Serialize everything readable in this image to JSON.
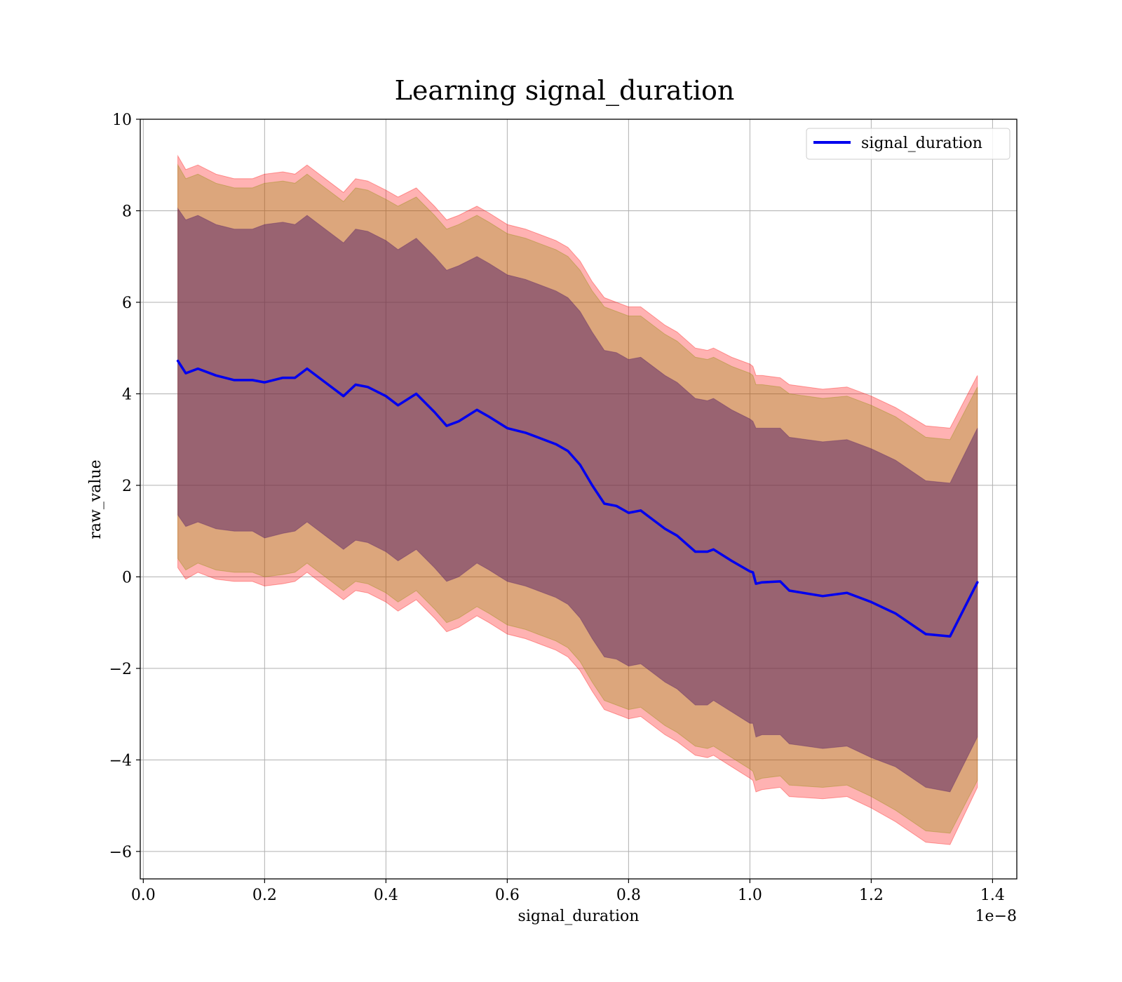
{
  "chart_data": {
    "type": "line",
    "title": "Learning signal_duration",
    "xlabel": "signal_duration",
    "ylabel": "raw_value",
    "x_offset_label": "1e−8",
    "xlim": [
      -0.005,
      1.44
    ],
    "ylim": [
      -6.6,
      10
    ],
    "x_ticks": [
      0.0,
      0.2,
      0.4,
      0.6,
      0.8,
      1.0,
      1.2,
      1.4
    ],
    "x_tick_labels": [
      "0.0",
      "0.2",
      "0.4",
      "0.6",
      "0.8",
      "1.0",
      "1.2",
      "1.4"
    ],
    "y_ticks": [
      -6,
      -4,
      -2,
      0,
      2,
      4,
      6,
      8,
      10
    ],
    "y_tick_labels": [
      "−6",
      "−4",
      "−2",
      "0",
      "2",
      "4",
      "6",
      "8",
      "10"
    ],
    "grid": true,
    "legend_position": "top-right",
    "colors": {
      "line": "#0000ee",
      "band_outer": "#ff0000",
      "band_middle": "#8b8b00",
      "band_inner": "#551f66"
    },
    "series": [
      {
        "name": "signal_duration",
        "x": [
          0.057,
          0.07,
          0.09,
          0.12,
          0.15,
          0.18,
          0.2,
          0.23,
          0.25,
          0.27,
          0.3,
          0.33,
          0.35,
          0.37,
          0.4,
          0.42,
          0.45,
          0.48,
          0.5,
          0.52,
          0.55,
          0.57,
          0.6,
          0.63,
          0.65,
          0.68,
          0.7,
          0.72,
          0.74,
          0.76,
          0.78,
          0.8,
          0.82,
          0.84,
          0.86,
          0.88,
          0.91,
          0.93,
          0.94,
          0.97,
          1.0,
          1.005,
          1.01,
          1.02,
          1.05,
          1.065,
          1.12,
          1.16,
          1.2,
          1.24,
          1.29,
          1.33,
          1.375
        ],
        "y": [
          4.72,
          4.45,
          4.55,
          4.4,
          4.3,
          4.3,
          4.25,
          4.35,
          4.35,
          4.55,
          4.25,
          3.95,
          4.2,
          4.15,
          3.95,
          3.75,
          4.0,
          3.6,
          3.3,
          3.4,
          3.65,
          3.5,
          3.25,
          3.15,
          3.05,
          2.9,
          2.75,
          2.45,
          2.0,
          1.6,
          1.55,
          1.4,
          1.45,
          1.25,
          1.05,
          0.9,
          0.55,
          0.55,
          0.6,
          0.35,
          0.12,
          0.1,
          -0.15,
          -0.12,
          -0.1,
          -0.3,
          -0.42,
          -0.35,
          -0.55,
          -0.8,
          -1.25,
          -1.3,
          -0.12
        ]
      }
    ],
    "bands": [
      {
        "level": "outer",
        "upper": [
          9.2,
          8.9,
          9.0,
          8.8,
          8.7,
          8.7,
          8.8,
          8.85,
          8.8,
          9.0,
          8.7,
          8.4,
          8.7,
          8.65,
          8.45,
          8.3,
          8.5,
          8.1,
          7.8,
          7.9,
          8.1,
          7.95,
          7.7,
          7.6,
          7.5,
          7.35,
          7.2,
          6.9,
          6.45,
          6.1,
          6.0,
          5.9,
          5.9,
          5.7,
          5.5,
          5.35,
          5.0,
          4.95,
          5.0,
          4.8,
          4.65,
          4.6,
          4.4,
          4.4,
          4.35,
          4.2,
          4.1,
          4.15,
          3.95,
          3.7,
          3.3,
          3.25,
          4.4
        ],
        "lower": [
          0.2,
          -0.05,
          0.1,
          -0.05,
          -0.1,
          -0.1,
          -0.2,
          -0.15,
          -0.1,
          0.1,
          -0.2,
          -0.5,
          -0.3,
          -0.35,
          -0.55,
          -0.75,
          -0.5,
          -0.9,
          -1.2,
          -1.1,
          -0.85,
          -1.0,
          -1.25,
          -1.35,
          -1.45,
          -1.6,
          -1.75,
          -2.05,
          -2.5,
          -2.9,
          -3.0,
          -3.1,
          -3.05,
          -3.25,
          -3.45,
          -3.6,
          -3.9,
          -3.95,
          -3.9,
          -4.15,
          -4.4,
          -4.45,
          -4.7,
          -4.65,
          -4.6,
          -4.8,
          -4.85,
          -4.8,
          -5.05,
          -5.35,
          -5.8,
          -5.85,
          -4.6
        ]
      },
      {
        "level": "middle",
        "upper": [
          9.0,
          8.7,
          8.8,
          8.6,
          8.5,
          8.5,
          8.6,
          8.65,
          8.6,
          8.8,
          8.5,
          8.2,
          8.5,
          8.45,
          8.25,
          8.1,
          8.3,
          7.9,
          7.6,
          7.7,
          7.9,
          7.75,
          7.5,
          7.4,
          7.3,
          7.15,
          7.0,
          6.7,
          6.25,
          5.9,
          5.8,
          5.7,
          5.7,
          5.5,
          5.3,
          5.15,
          4.8,
          4.75,
          4.8,
          4.6,
          4.45,
          4.4,
          4.2,
          4.2,
          4.15,
          4.0,
          3.9,
          3.95,
          3.75,
          3.5,
          3.05,
          3.0,
          4.15
        ],
        "lower": [
          0.4,
          0.15,
          0.3,
          0.15,
          0.1,
          0.1,
          0.0,
          0.05,
          0.1,
          0.3,
          0.0,
          -0.3,
          -0.1,
          -0.15,
          -0.35,
          -0.55,
          -0.3,
          -0.7,
          -1.0,
          -0.9,
          -0.65,
          -0.8,
          -1.05,
          -1.15,
          -1.25,
          -1.4,
          -1.55,
          -1.85,
          -2.3,
          -2.7,
          -2.8,
          -2.9,
          -2.85,
          -3.05,
          -3.25,
          -3.4,
          -3.7,
          -3.75,
          -3.7,
          -3.95,
          -4.2,
          -4.25,
          -4.45,
          -4.4,
          -4.35,
          -4.55,
          -4.6,
          -4.55,
          -4.8,
          -5.1,
          -5.55,
          -5.6,
          -4.45
        ]
      },
      {
        "level": "inner",
        "upper": [
          8.05,
          7.8,
          7.9,
          7.7,
          7.6,
          7.6,
          7.7,
          7.75,
          7.7,
          7.9,
          7.6,
          7.3,
          7.6,
          7.55,
          7.35,
          7.15,
          7.4,
          7.0,
          6.7,
          6.8,
          7.0,
          6.85,
          6.6,
          6.5,
          6.4,
          6.25,
          6.1,
          5.8,
          5.35,
          4.95,
          4.9,
          4.75,
          4.8,
          4.6,
          4.4,
          4.25,
          3.9,
          3.85,
          3.9,
          3.65,
          3.45,
          3.4,
          3.25,
          3.25,
          3.25,
          3.05,
          2.95,
          3.0,
          2.8,
          2.55,
          2.1,
          2.05,
          3.25
        ],
        "lower": [
          1.35,
          1.1,
          1.2,
          1.05,
          1.0,
          1.0,
          0.85,
          0.95,
          1.0,
          1.2,
          0.9,
          0.6,
          0.8,
          0.75,
          0.55,
          0.35,
          0.6,
          0.2,
          -0.1,
          0.0,
          0.3,
          0.15,
          -0.1,
          -0.2,
          -0.3,
          -0.45,
          -0.6,
          -0.9,
          -1.35,
          -1.75,
          -1.8,
          -1.95,
          -1.9,
          -2.1,
          -2.3,
          -2.45,
          -2.8,
          -2.8,
          -2.7,
          -2.95,
          -3.2,
          -3.2,
          -3.5,
          -3.45,
          -3.45,
          -3.65,
          -3.75,
          -3.7,
          -3.95,
          -4.15,
          -4.6,
          -4.7,
          -3.5
        ]
      }
    ]
  }
}
